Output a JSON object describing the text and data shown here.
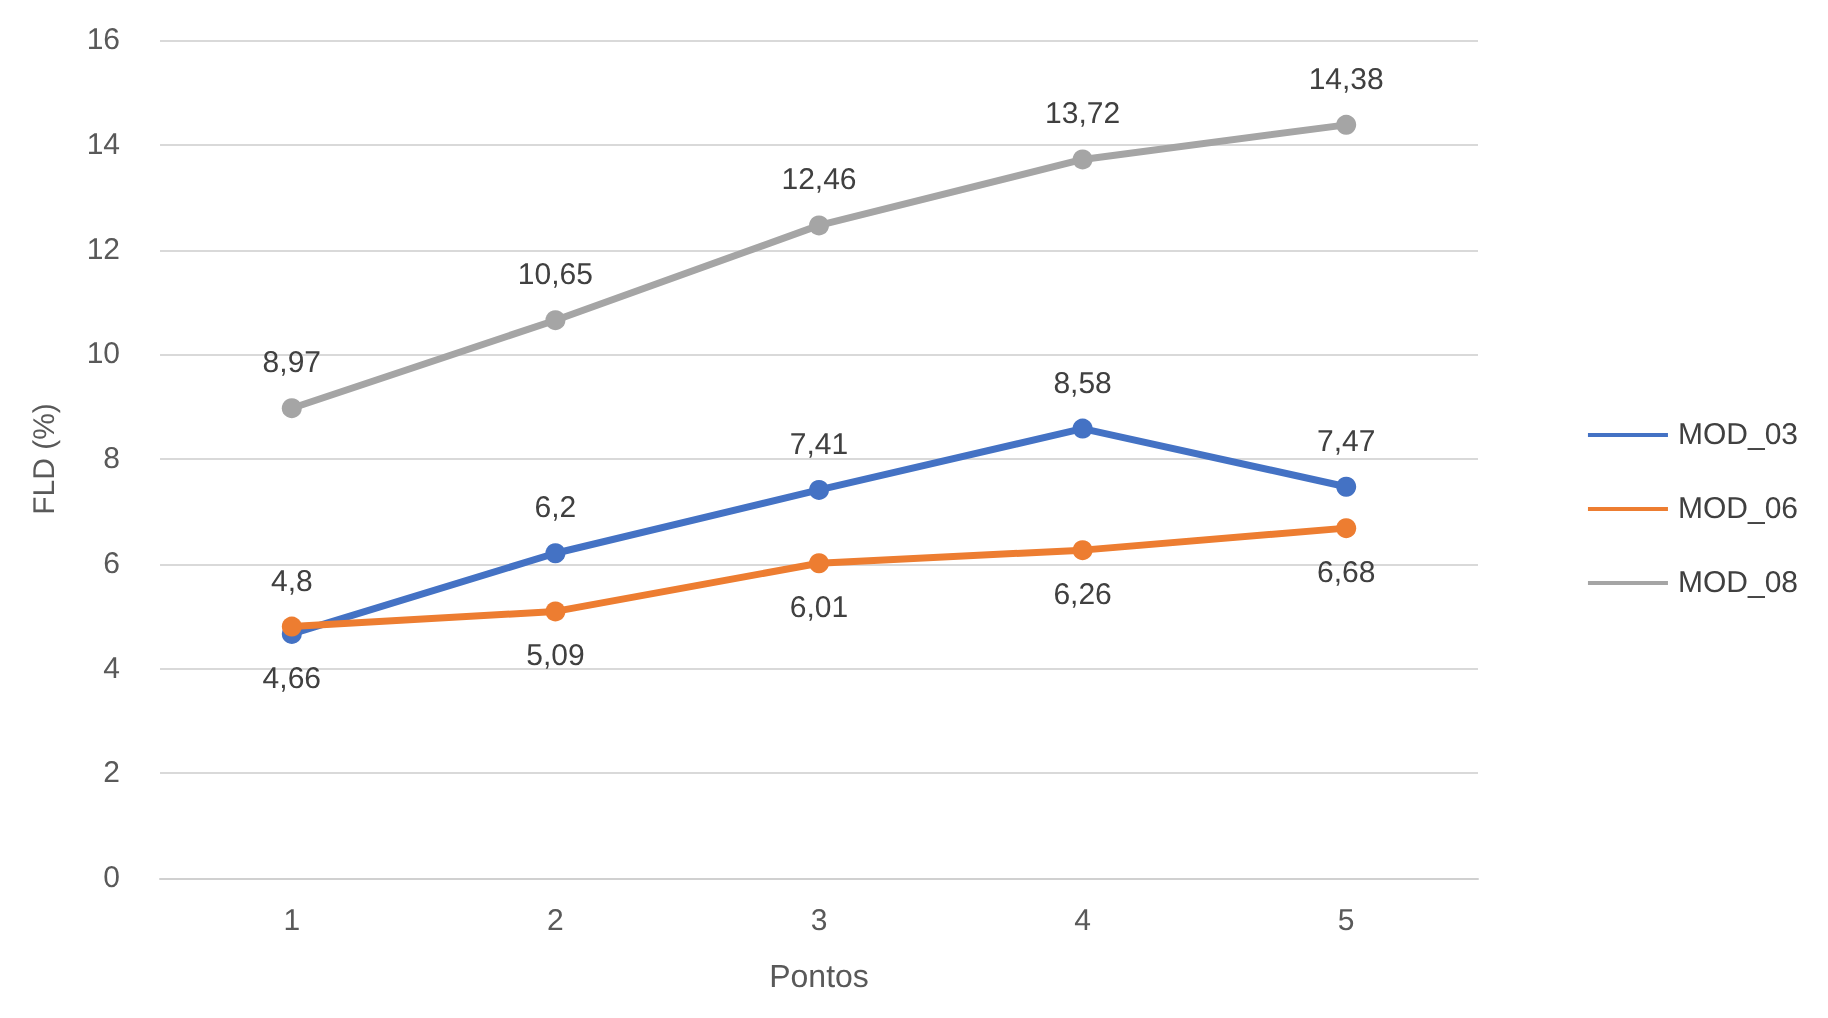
{
  "chart_data": {
    "type": "line",
    "xlabel": "Pontos",
    "ylabel": "FLD (%)",
    "categories": [
      "1",
      "2",
      "3",
      "4",
      "5"
    ],
    "series": [
      {
        "name": "MOD_03",
        "color": "#4472c4",
        "values": [
          4.66,
          6.2,
          7.41,
          8.58,
          7.47
        ],
        "value_labels": [
          "4,66",
          "6,2",
          "7,41",
          "8,58",
          "7,47"
        ]
      },
      {
        "name": "MOD_06",
        "color": "#ed7d31",
        "values": [
          4.8,
          5.09,
          6.01,
          6.26,
          6.68
        ],
        "value_labels": [
          "4,8",
          "5,09",
          "6,01",
          "6,26",
          "6,68"
        ]
      },
      {
        "name": "MOD_08",
        "color": "#a5a5a5",
        "values": [
          8.97,
          10.65,
          12.46,
          13.72,
          14.38
        ],
        "value_labels": [
          "8,97",
          "10,65",
          "12,46",
          "13,72",
          "14,38"
        ]
      }
    ],
    "ylim": [
      0,
      16
    ],
    "yticks": [
      0,
      2,
      4,
      6,
      8,
      10,
      12,
      14,
      16
    ],
    "grid": "y",
    "legend": "right",
    "marker": "circle",
    "line_style": "solid"
  }
}
